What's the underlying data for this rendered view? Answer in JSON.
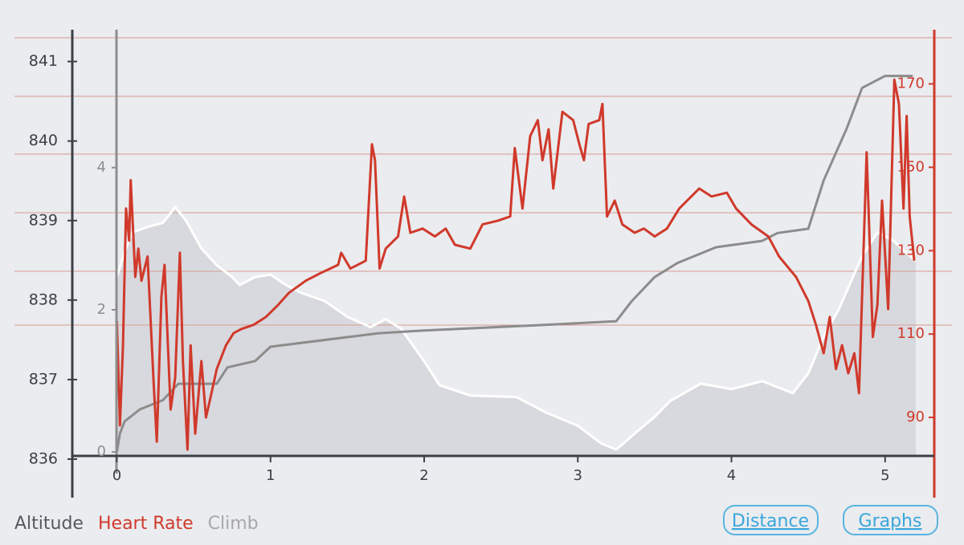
{
  "chart_data": {
    "type": "line",
    "xlim": [
      -0.29,
      5.32
    ],
    "xticks": [
      0,
      1,
      2,
      3,
      4,
      5
    ],
    "ylim": [
      836,
      841.4
    ],
    "yticks": [
      836,
      837,
      838,
      839,
      840,
      841
    ],
    "y2lim": [
      80,
      183
    ],
    "y2ticks": [
      90,
      110,
      130,
      150,
      170
    ],
    "y3lim": [
      -0.1,
      5.94
    ],
    "y3ticks": [
      0,
      2,
      4
    ],
    "series": [
      {
        "name": "Altitude",
        "color": "#ffffff",
        "fill": "#d8d9de",
        "legend_color": "#555a60",
        "axis": "y",
        "x": [
          0.0,
          0.05,
          0.1,
          0.2,
          0.3,
          0.38,
          0.45,
          0.55,
          0.65,
          0.75,
          0.8,
          0.9,
          1.0,
          1.1,
          1.2,
          1.35,
          1.5,
          1.65,
          1.75,
          1.85,
          2.0,
          2.1,
          2.3,
          2.6,
          2.8,
          3.0,
          3.15,
          3.25,
          3.4,
          3.5,
          3.6,
          3.8,
          4.0,
          4.2,
          4.4,
          4.5,
          4.6,
          4.7,
          4.85,
          4.95,
          5.05,
          5.2
        ],
        "values": [
          838.29,
          838.6,
          838.85,
          838.92,
          838.97,
          839.17,
          839.0,
          838.65,
          838.44,
          838.29,
          838.19,
          838.29,
          838.32,
          838.19,
          838.09,
          837.99,
          837.79,
          837.66,
          837.76,
          837.64,
          837.23,
          836.93,
          836.8,
          836.78,
          836.58,
          836.42,
          836.2,
          836.12,
          836.37,
          836.53,
          836.73,
          836.95,
          836.88,
          836.98,
          836.83,
          837.08,
          837.54,
          837.89,
          838.55,
          838.85,
          838.75,
          838.49
        ]
      },
      {
        "name": "Heart Rate",
        "color": "#d0392b",
        "legend_color": "#d0392b",
        "axis": "y2",
        "x": [
          0.0,
          0.02,
          0.04,
          0.06,
          0.08,
          0.09,
          0.12,
          0.14,
          0.16,
          0.2,
          0.24,
          0.26,
          0.29,
          0.31,
          0.35,
          0.38,
          0.41,
          0.43,
          0.46,
          0.48,
          0.51,
          0.55,
          0.58,
          0.61,
          0.65,
          0.71,
          0.76,
          0.81,
          0.89,
          0.97,
          1.05,
          1.12,
          1.23,
          1.33,
          1.44,
          1.46,
          1.52,
          1.62,
          1.66,
          1.68,
          1.71,
          1.75,
          1.83,
          1.87,
          1.91,
          1.99,
          2.07,
          2.14,
          2.2,
          2.3,
          2.38,
          2.48,
          2.56,
          2.59,
          2.64,
          2.69,
          2.74,
          2.77,
          2.81,
          2.84,
          2.9,
          2.97,
          3.01,
          3.04,
          3.07,
          3.14,
          3.16,
          3.19,
          3.24,
          3.29,
          3.37,
          3.43,
          3.5,
          3.58,
          3.66,
          3.79,
          3.87,
          3.97,
          4.03,
          4.13,
          4.24,
          4.31,
          4.42,
          4.5,
          4.55,
          4.6,
          4.64,
          4.68,
          4.72,
          4.76,
          4.8,
          4.83,
          4.88,
          4.92,
          4.95,
          4.98,
          5.02,
          5.06,
          5.09,
          5.12,
          5.14,
          5.16,
          5.19
        ],
        "values": [
          113.1,
          88.1,
          107.3,
          140.1,
          132.4,
          146.9,
          123.7,
          130.5,
          122.8,
          128.6,
          97.7,
          84.2,
          118.9,
          126.6,
          91.9,
          99.6,
          129.5,
          103.5,
          82.3,
          107.3,
          86.1,
          103.5,
          90.0,
          94.8,
          101.6,
          107.3,
          110.2,
          111.2,
          112.2,
          114.1,
          117.0,
          119.9,
          122.8,
          124.7,
          126.6,
          129.5,
          125.7,
          127.6,
          155.5,
          151.7,
          125.7,
          130.5,
          133.4,
          143.0,
          134.3,
          135.3,
          133.4,
          135.3,
          131.4,
          130.5,
          136.3,
          137.2,
          138.2,
          154.6,
          140.1,
          157.5,
          161.3,
          151.7,
          159.1,
          144.9,
          163.3,
          161.3,
          155.5,
          151.7,
          160.4,
          161.3,
          165.2,
          138.2,
          142.0,
          136.3,
          134.3,
          135.3,
          133.4,
          135.3,
          140.1,
          144.9,
          143.0,
          143.9,
          140.1,
          136.3,
          133.4,
          128.6,
          123.7,
          117.9,
          112.2,
          105.4,
          114.1,
          101.6,
          107.3,
          100.6,
          105.4,
          95.8,
          153.6,
          109.3,
          117.0,
          142.0,
          116.0,
          171.0,
          165.2,
          140.1,
          162.3,
          138.2,
          127.6
        ]
      },
      {
        "name": "Climb",
        "color": "#8c8c8c",
        "legend_color": "#a8a8a8",
        "axis": "y3",
        "x": [
          0.0,
          0.02,
          0.05,
          0.15,
          0.3,
          0.4,
          0.65,
          0.72,
          0.9,
          1.0,
          1.7,
          2.0,
          2.8,
          3.25,
          3.35,
          3.5,
          3.65,
          3.9,
          4.2,
          4.3,
          4.5,
          4.6,
          4.75,
          4.85,
          5.0,
          5.18
        ],
        "values": [
          0,
          0.26,
          0.43,
          0.6,
          0.73,
          0.96,
          0.96,
          1.19,
          1.28,
          1.48,
          1.67,
          1.71,
          1.79,
          1.84,
          2.12,
          2.46,
          2.66,
          2.88,
          2.97,
          3.08,
          3.14,
          3.82,
          4.55,
          5.12,
          5.29,
          5.29
        ]
      }
    ]
  },
  "buttons": [
    "Distance",
    "Graphs"
  ]
}
